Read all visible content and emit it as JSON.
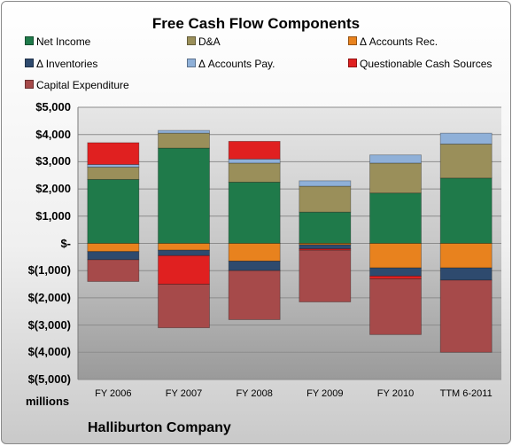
{
  "chart_data": {
    "type": "bar",
    "stacked": true,
    "title": "Free Cash Flow Components",
    "units_label": "millions",
    "company": "Halliburton Company",
    "categories": [
      "FY 2006",
      "FY 2007",
      "FY 2008",
      "FY 2009",
      "FY 2010",
      "TTM 6-2011"
    ],
    "y_ticks": [
      "$5,000",
      "$4,000",
      "$3,000",
      "$2,000",
      "$1,000",
      "$-",
      "$(1,000)",
      "$(2,000)",
      "$(3,000)",
      "$(4,000)",
      "$(5,000)"
    ],
    "ylim": [
      -5000,
      5000
    ],
    "grid": true,
    "legend_position": "top",
    "series": [
      {
        "name": "Net Income",
        "color": "#1f7a4a",
        "values": [
          2350,
          3500,
          2250,
          1150,
          1850,
          2400
        ]
      },
      {
        "name": "D&A",
        "color": "#9a8f5a",
        "values": [
          450,
          550,
          700,
          950,
          1100,
          1250
        ]
      },
      {
        "name": "Δ Accounts Rec.",
        "color": "#e8821e",
        "values": [
          -300,
          -250,
          -650,
          -50,
          -900,
          -900
        ]
      },
      {
        "name": "Δ Inventories",
        "color": "#2e4a6e",
        "values": [
          -300,
          -200,
          -350,
          -150,
          -300,
          -450
        ]
      },
      {
        "name": "Δ Accounts Pay.",
        "color": "#8fb0d8",
        "values": [
          100,
          100,
          150,
          200,
          300,
          400
        ]
      },
      {
        "name": "Questionable Cash Sources",
        "color": "#e02020",
        "values": [
          800,
          -1050,
          650,
          -50,
          -100,
          0
        ]
      },
      {
        "name": "Capital Expenditure",
        "color": "#a64a4a",
        "values": [
          -800,
          -1600,
          -1800,
          -1900,
          -2050,
          -2650
        ]
      }
    ]
  }
}
